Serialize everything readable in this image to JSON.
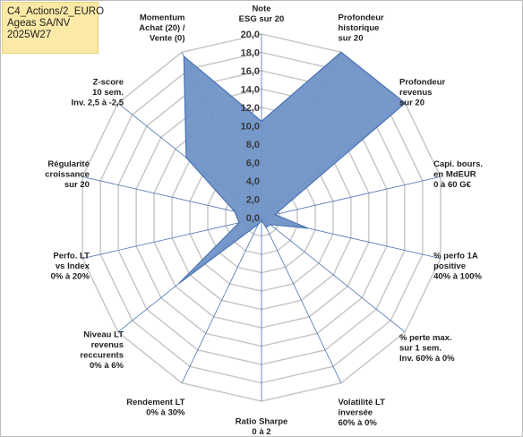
{
  "info": {
    "line1": "C4_Actions/2_EURO",
    "line2": "Ageas SA/NV",
    "line3": "2025W27"
  },
  "colors": {
    "fill": "#6f93c7",
    "stroke": "#4a72b0",
    "grid": "#c4c4c4",
    "spoke": "#4a72b0",
    "info_bg": "#fbe9a6"
  },
  "chart_data": {
    "type": "radar",
    "title": "",
    "range": [
      0,
      20
    ],
    "tick_step": 2,
    "tick_labels": [
      "0,0",
      "2,0",
      "4,0",
      "6,0",
      "8,0",
      "10,0",
      "12,0",
      "14,0",
      "16,0",
      "18,0",
      "20,0"
    ],
    "grid": true,
    "axes": [
      {
        "label": [
          "Note",
          "ESG sur 20"
        ],
        "value": 10.5
      },
      {
        "label": [
          "Profondeur",
          "historique",
          "sur 20"
        ],
        "value": 20.0
      },
      {
        "label": [
          "Profondeur",
          "revenus",
          "sur 20"
        ],
        "value": 20.0
      },
      {
        "label": [
          "Capi. bours.",
          "en MdEUR",
          "0 à 60 G€"
        ],
        "value": 1.5
      },
      {
        "label": [
          "% perfo 1A",
          "positive",
          "40% à 100%"
        ],
        "value": 5.2
      },
      {
        "label": [
          "% perte max.",
          "sur 1 sem.",
          "Inv. 60% à 0%"
        ],
        "value": 1.2
      },
      {
        "label": [
          "Volatilité LT",
          "inversée",
          "60% à 0%"
        ],
        "value": 1.2
      },
      {
        "label": [
          "Ratio Sharpe",
          "0 à 2"
        ],
        "value": 0.3
      },
      {
        "label": [
          "Rendement LT",
          "0% à 30%"
        ],
        "value": 0.8
      },
      {
        "label": [
          "Niveau LT",
          "revenus",
          "reccurents",
          "0% à 6%"
        ],
        "value": 11.5
      },
      {
        "label": [
          "Perfo. LT",
          "vs Index",
          "0% à 20%"
        ],
        "value": 2.5
      },
      {
        "label": [
          "Régularité",
          "croissance",
          "sur 20"
        ],
        "value": 3.0
      },
      {
        "label": [
          "Z-score",
          "10 sem.",
          "Inv. 2,5 à -2,5"
        ],
        "value": 10.5
      },
      {
        "label": [
          "Momentum",
          "Achat (20) /",
          "Vente (0)"
        ],
        "value": 19.5
      }
    ]
  }
}
